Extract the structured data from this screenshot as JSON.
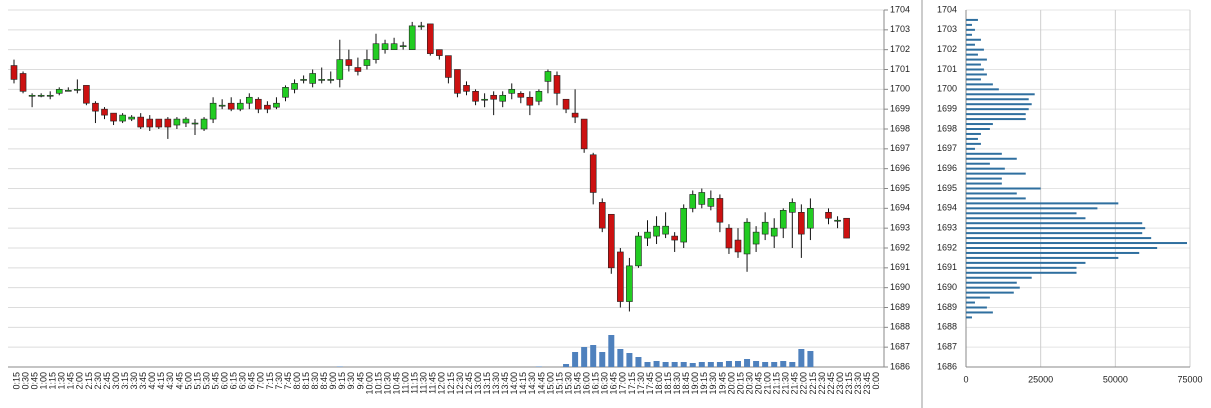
{
  "chart_data": [
    {
      "type": "candlestick",
      "categories": [
        "0:15",
        "0:30",
        "0:45",
        "1:00",
        "1:15",
        "1:30",
        "1:45",
        "2:00",
        "2:15",
        "2:30",
        "2:45",
        "3:00",
        "3:15",
        "3:30",
        "3:45",
        "4:00",
        "4:15",
        "4:30",
        "4:45",
        "5:00",
        "5:15",
        "5:30",
        "5:45",
        "6:00",
        "6:15",
        "6:30",
        "6:45",
        "7:00",
        "7:15",
        "7:30",
        "7:45",
        "8:00",
        "8:15",
        "8:30",
        "8:45",
        "9:00",
        "9:15",
        "9:30",
        "9:45",
        "10:00",
        "10:15",
        "10:30",
        "10:45",
        "11:00",
        "11:15",
        "11:30",
        "11:45",
        "12:00",
        "12:15",
        "12:30",
        "12:45",
        "13:00",
        "13:15",
        "13:30",
        "13:45",
        "14:00",
        "14:15",
        "14:30",
        "14:45",
        "15:00",
        "15:15",
        "15:30",
        "15:45",
        "16:00",
        "16:15",
        "16:30",
        "16:45",
        "17:00",
        "17:15",
        "17:30",
        "17:45",
        "18:00",
        "18:15",
        "18:30",
        "18:45",
        "19:00",
        "19:15",
        "19:30",
        "19:45",
        "20:00",
        "20:15",
        "20:30",
        "20:45",
        "21:00",
        "21:15",
        "21:30",
        "21:45",
        "22:00",
        "22:15",
        "22:30",
        "22:45",
        "23:00",
        "23:15",
        "23:30",
        "23:45",
        "0:00"
      ],
      "open": [
        1701.2,
        1700.8,
        1699.7,
        1699.7,
        1699.7,
        1699.8,
        1699.95,
        1700.0,
        1700.2,
        1699.3,
        1699.0,
        1698.8,
        1698.4,
        1698.5,
        1698.6,
        1698.5,
        1698.5,
        1698.5,
        1698.2,
        1698.3,
        1698.3,
        1698.0,
        1698.5,
        1699.2,
        1699.3,
        1699.0,
        1699.3,
        1699.5,
        1699.2,
        1699.1,
        1699.6,
        1700.0,
        1700.5,
        1700.3,
        1700.5,
        1700.5,
        1700.5,
        1701.5,
        1701.1,
        1701.2,
        1701.5,
        1702.0,
        1702.0,
        1702.2,
        1702.0,
        1703.2,
        1703.3,
        1702.0,
        1701.7,
        1701.0,
        1700.2,
        1699.9,
        1699.5,
        1699.7,
        1699.4,
        1699.8,
        1699.8,
        1699.6,
        1699.4,
        1700.4,
        1700.7,
        1699.5,
        1698.8,
        1698.5,
        1696.7,
        1694.3,
        1693.7,
        1691.8,
        1689.3,
        1691.1,
        1692.5,
        1692.6,
        1692.7,
        1692.6,
        1692.3,
        1694.0,
        1694.2,
        1694.1,
        1694.5,
        1693.0,
        1692.4,
        1691.7,
        1692.2,
        1692.7,
        1692.6,
        1693.0,
        1693.8,
        1693.8,
        1693.0,
        null,
        1693.8,
        1693.4,
        1693.5,
        null,
        null,
        null
      ],
      "high": [
        1701.5,
        1700.9,
        1699.8,
        1699.8,
        1699.9,
        1700.1,
        1700.1,
        1700.5,
        1700.2,
        1699.4,
        1699.1,
        1698.8,
        1698.8,
        1698.7,
        1698.8,
        1698.7,
        1698.5,
        1698.6,
        1698.6,
        1698.6,
        1698.5,
        1698.6,
        1699.6,
        1699.5,
        1699.6,
        1699.5,
        1699.8,
        1699.6,
        1699.4,
        1699.6,
        1700.2,
        1700.5,
        1700.7,
        1701.0,
        1701.1,
        1700.9,
        1702.5,
        1702.0,
        1701.6,
        1702.0,
        1702.8,
        1702.5,
        1702.6,
        1702.4,
        1703.4,
        1703.4,
        1703.3,
        1702.0,
        1701.7,
        1701.0,
        1700.4,
        1700.0,
        1699.8,
        1699.9,
        1699.9,
        1700.3,
        1699.9,
        1699.9,
        1700.0,
        1701.0,
        1700.9,
        1699.5,
        1700.0,
        1698.5,
        1696.8,
        1694.5,
        1693.7,
        1692.0,
        1691.5,
        1692.8,
        1693.4,
        1693.6,
        1693.8,
        1692.8,
        1694.2,
        1694.9,
        1695.0,
        1694.9,
        1694.7,
        1693.2,
        1693.0,
        1693.5,
        1693.1,
        1693.8,
        1693.5,
        1694.0,
        1694.5,
        1694.2,
        1694.5,
        null,
        1694.0,
        1693.6,
        1693.5,
        null,
        null,
        null
      ],
      "low": [
        1700.3,
        1699.8,
        1699.1,
        1699.6,
        1699.5,
        1699.7,
        1699.9,
        1699.8,
        1699.2,
        1698.3,
        1698.5,
        1698.2,
        1698.3,
        1698.4,
        1698.0,
        1697.9,
        1698.0,
        1697.5,
        1698.0,
        1698.1,
        1697.7,
        1697.9,
        1698.3,
        1699.0,
        1698.9,
        1698.9,
        1699.0,
        1698.8,
        1698.8,
        1699.0,
        1699.4,
        1699.8,
        1700.3,
        1700.1,
        1700.3,
        1700.3,
        1700.1,
        1700.9,
        1700.7,
        1701.0,
        1701.3,
        1701.8,
        1702.0,
        1702.0,
        1702.0,
        1703.0,
        1701.7,
        1701.5,
        1700.3,
        1699.6,
        1699.7,
        1699.2,
        1699.1,
        1698.7,
        1699.1,
        1699.5,
        1699.3,
        1698.7,
        1699.2,
        1699.8,
        1699.2,
        1698.8,
        1698.3,
        1696.8,
        1694.2,
        1692.8,
        1690.7,
        1689.0,
        1688.8,
        1691.0,
        1692.1,
        1692.2,
        1692.5,
        1691.8,
        1692.0,
        1693.8,
        1694.0,
        1693.9,
        1692.8,
        1691.7,
        1691.5,
        1690.8,
        1691.8,
        1692.4,
        1692.0,
        1692.5,
        1692.0,
        1691.5,
        1692.4,
        null,
        1693.2,
        1693.0,
        1692.5,
        null,
        null,
        null
      ],
      "close": [
        1700.5,
        1699.9,
        1699.7,
        1699.7,
        1699.7,
        1700.0,
        1699.95,
        1700.0,
        1699.3,
        1698.9,
        1698.7,
        1698.4,
        1698.7,
        1698.6,
        1698.1,
        1698.1,
        1698.1,
        1698.1,
        1698.5,
        1698.5,
        1698.3,
        1698.5,
        1699.3,
        1699.2,
        1699.0,
        1699.3,
        1699.6,
        1699.0,
        1699.0,
        1699.3,
        1700.1,
        1700.3,
        1700.5,
        1700.8,
        1700.5,
        1700.5,
        1701.5,
        1701.2,
        1700.9,
        1701.5,
        1702.3,
        1702.3,
        1702.3,
        1702.2,
        1703.2,
        1703.2,
        1701.8,
        1701.7,
        1700.6,
        1699.8,
        1699.9,
        1699.4,
        1699.5,
        1699.5,
        1699.7,
        1700.0,
        1699.6,
        1699.2,
        1699.9,
        1700.9,
        1699.8,
        1699.0,
        1698.6,
        1697.0,
        1694.8,
        1693.0,
        1691.0,
        1689.3,
        1691.1,
        1692.6,
        1692.8,
        1693.1,
        1693.1,
        1692.4,
        1694.0,
        1694.7,
        1694.8,
        1694.5,
        1693.3,
        1692.0,
        1691.8,
        1693.3,
        1692.8,
        1693.3,
        1693.0,
        1693.9,
        1694.3,
        1692.7,
        1694.0,
        null,
        1693.5,
        1693.4,
        1692.5,
        null,
        null,
        null
      ],
      "volume": [
        null,
        null,
        null,
        null,
        null,
        null,
        null,
        null,
        null,
        null,
        null,
        null,
        null,
        null,
        null,
        null,
        null,
        null,
        null,
        null,
        null,
        null,
        null,
        null,
        null,
        null,
        null,
        null,
        null,
        null,
        null,
        null,
        null,
        null,
        null,
        null,
        500,
        null,
        null,
        null,
        null,
        null,
        null,
        null,
        null,
        null,
        null,
        null,
        null,
        null,
        null,
        null,
        null,
        null,
        null,
        null,
        null,
        null,
        500,
        null,
        null,
        3000,
        15000,
        20000,
        22000,
        15000,
        32000,
        18000,
        14000,
        10000,
        5000,
        6000,
        5000,
        5000,
        5000,
        4000,
        5000,
        5000,
        5000,
        6000,
        6000,
        8000,
        6000,
        5000,
        5000,
        6000,
        5000,
        18000,
        16000,
        null,
        null,
        null,
        null,
        null,
        null,
        null
      ],
      "up_color": "#22cc22",
      "down_color": "#cc1111",
      "volume_color": "#4f81bd",
      "ylim": [
        1686,
        1704
      ],
      "yticks": [
        1686,
        1687,
        1688,
        1689,
        1690,
        1691,
        1692,
        1693,
        1694,
        1695,
        1696,
        1697,
        1698,
        1699,
        1700,
        1701,
        1702,
        1703,
        1704
      ],
      "grid": true
    },
    {
      "type": "barh",
      "y": [
        1703.5,
        1703.25,
        1703,
        1702.75,
        1702.5,
        1702.25,
        1702,
        1701.75,
        1701.5,
        1701.25,
        1701,
        1700.75,
        1700.5,
        1700.25,
        1700,
        1699.75,
        1699.5,
        1699.25,
        1699,
        1698.75,
        1698.5,
        1698.25,
        1698,
        1697.75,
        1697.5,
        1697.25,
        1697,
        1696.75,
        1696.5,
        1696.25,
        1696,
        1695.75,
        1695.5,
        1695.25,
        1695,
        1694.75,
        1694.5,
        1694.25,
        1694,
        1693.75,
        1693.5,
        1693.25,
        1693,
        1692.75,
        1692.5,
        1692.25,
        1692,
        1691.75,
        1691.5,
        1691.25,
        1691,
        1690.75,
        1690.5,
        1690.25,
        1690,
        1689.75,
        1689.5,
        1689.25,
        1689,
        1688.75,
        1688.5
      ],
      "values": [
        4000,
        2000,
        3000,
        2000,
        5000,
        3000,
        6000,
        4000,
        7000,
        5000,
        6000,
        7000,
        5000,
        9000,
        11000,
        23000,
        21000,
        22000,
        21000,
        20000,
        20000,
        9000,
        8000,
        5000,
        4000,
        5000,
        3000,
        12000,
        17000,
        8000,
        13000,
        20000,
        12000,
        12000,
        25000,
        17000,
        20000,
        51000,
        44000,
        37000,
        40000,
        59000,
        60000,
        59000,
        62000,
        74000,
        64000,
        58000,
        51000,
        40000,
        37000,
        37000,
        22000,
        17000,
        18000,
        16000,
        8000,
        3000,
        7000,
        9000,
        2000
      ],
      "color": "#2f6f9f",
      "xlim": [
        0,
        75000
      ],
      "xticks": [
        0,
        25000,
        50000,
        75000
      ],
      "ylim": [
        1686,
        1704
      ],
      "yticks": [
        1686,
        1687,
        1688,
        1689,
        1690,
        1691,
        1692,
        1693,
        1694,
        1695,
        1696,
        1697,
        1698,
        1699,
        1700,
        1701,
        1702,
        1703,
        1704
      ],
      "grid": true
    }
  ]
}
